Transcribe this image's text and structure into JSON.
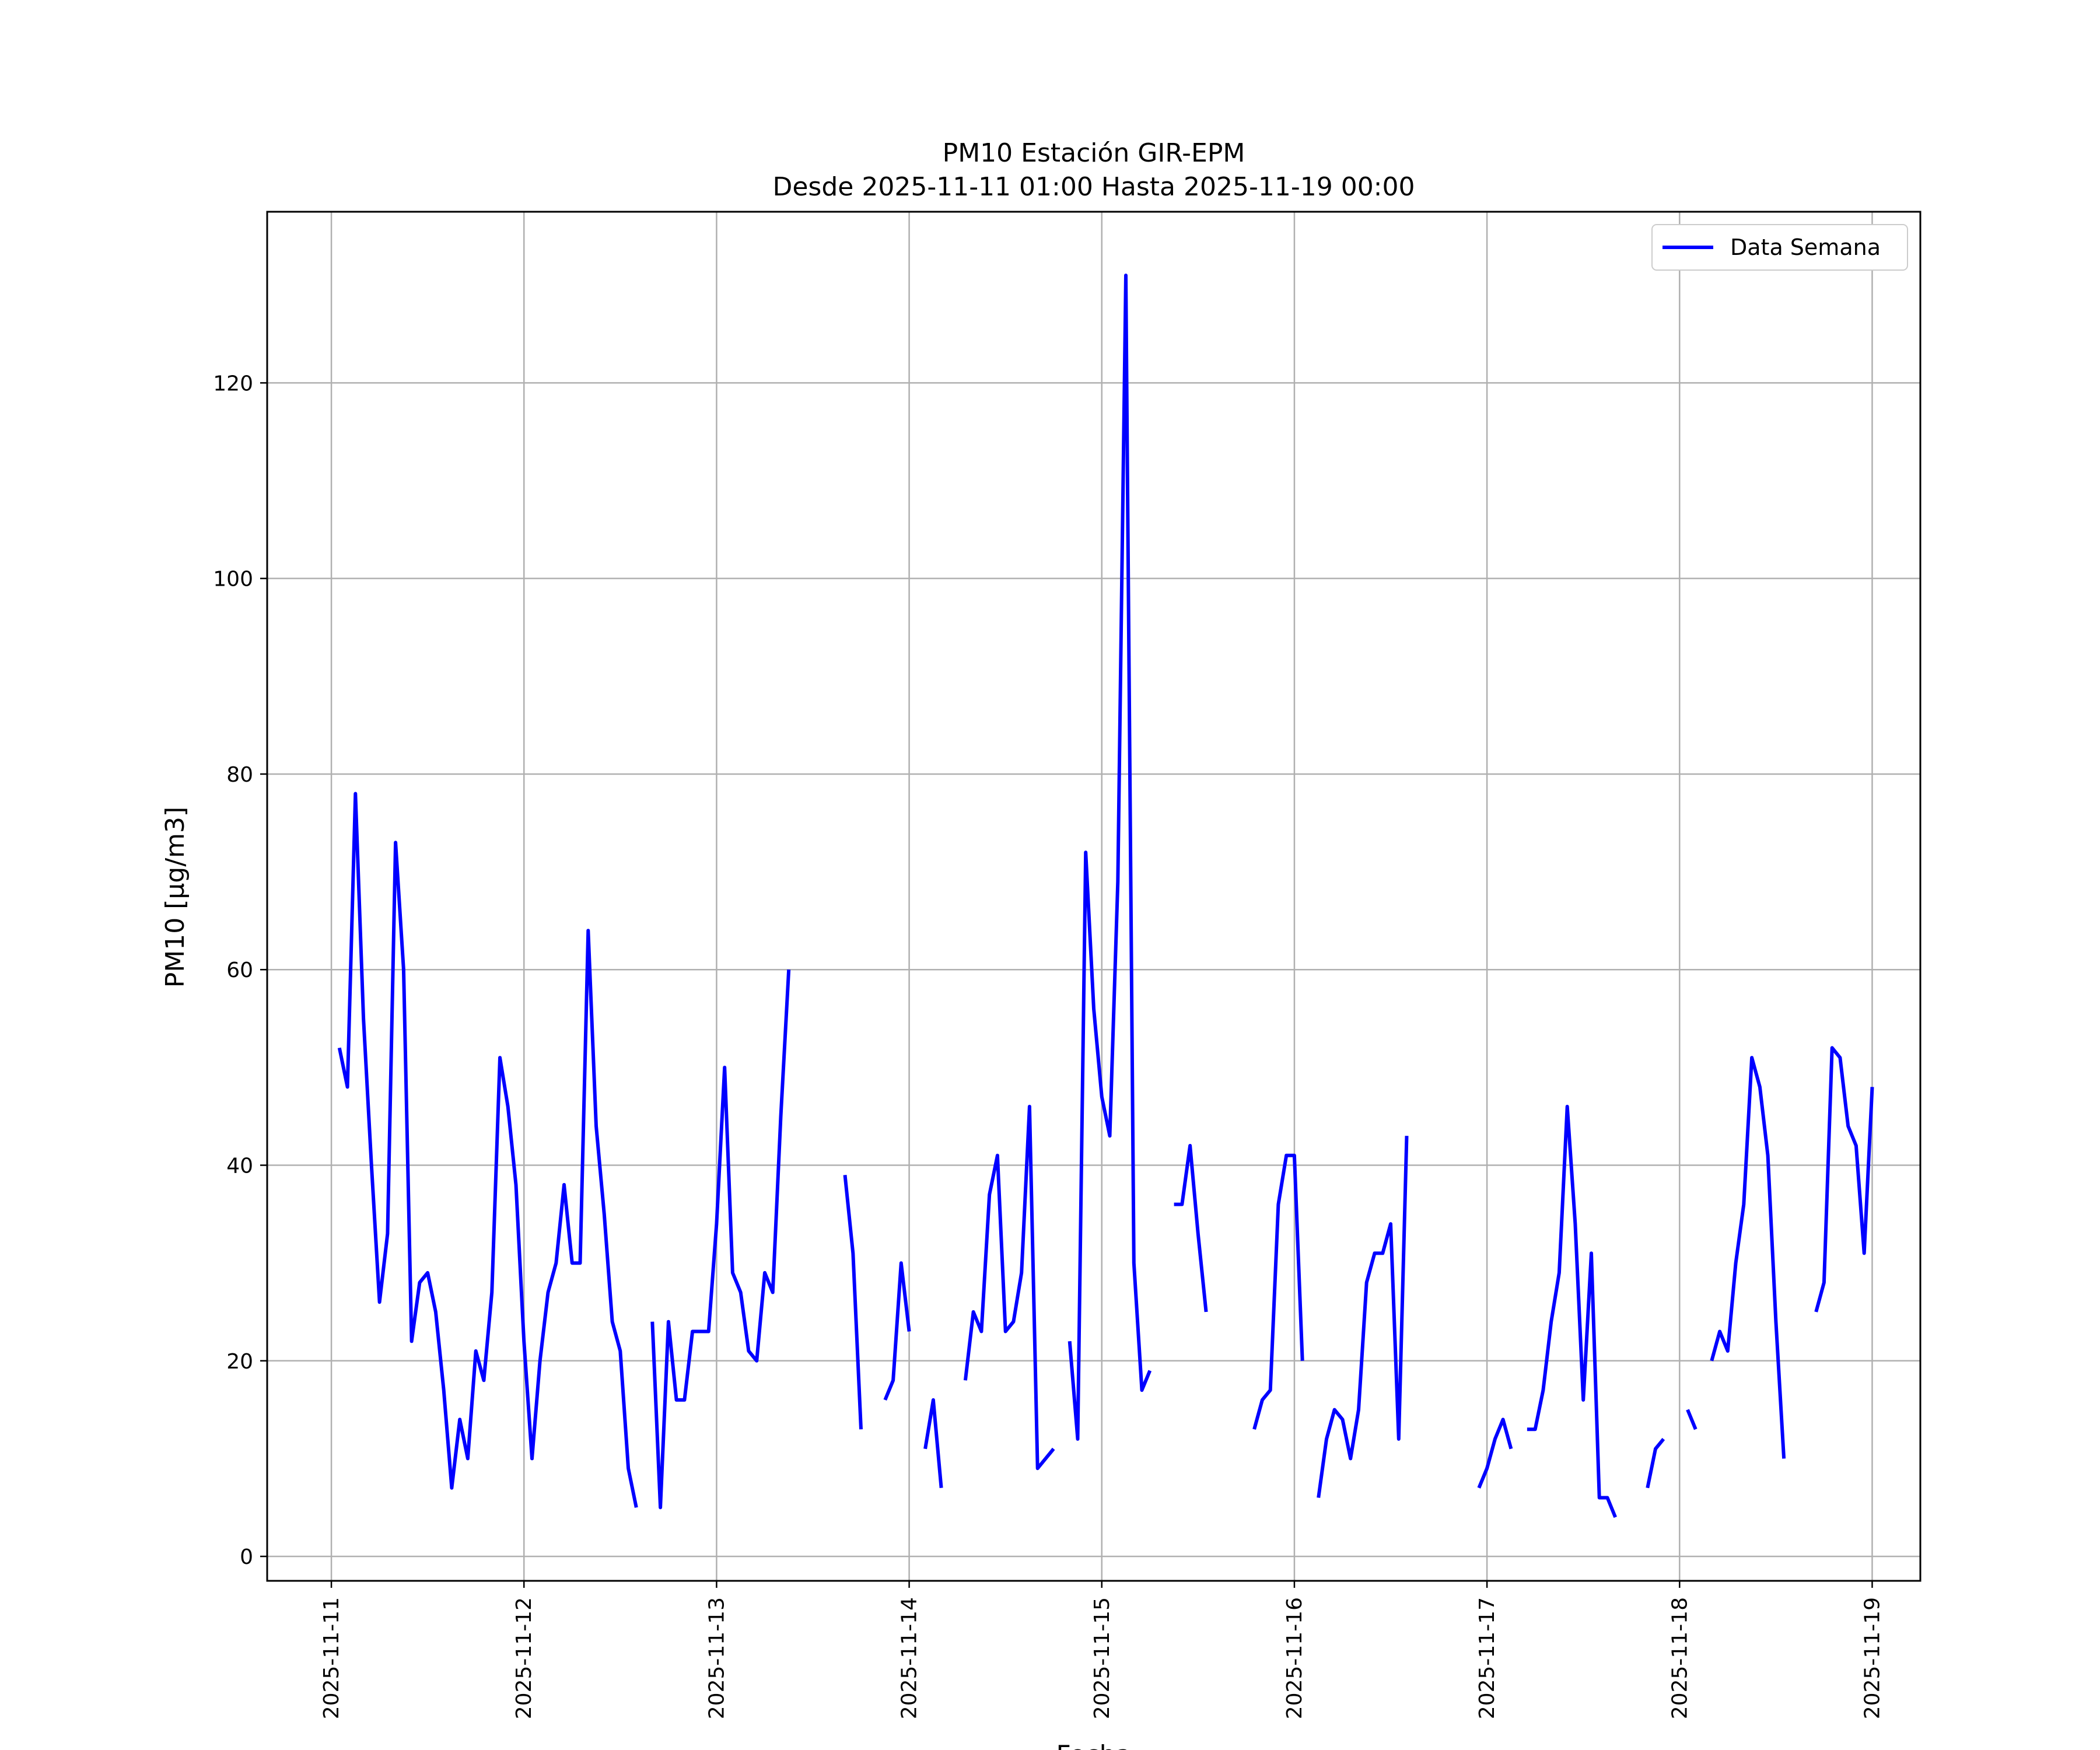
{
  "chart_data": {
    "type": "line",
    "title": "PM10 Estación GIR-EPM",
    "subtitle": "Desde 2025-11-11 01:00 Hasta 2025-11-19 00:00",
    "xlabel": "Fecha",
    "ylabel": "PM10 [μg/m3]",
    "xlim": [
      "2025-11-10 16:00",
      "2025-11-19 06:00"
    ],
    "ylim": [
      -2.5,
      137.5
    ],
    "grid": true,
    "legend_position": "top-right",
    "x_ticks": [
      "2025-11-11",
      "2025-11-12",
      "2025-11-13",
      "2025-11-14",
      "2025-11-15",
      "2025-11-16",
      "2025-11-17",
      "2025-11-18",
      "2025-11-19"
    ],
    "y_ticks": [
      "0",
      "20",
      "40",
      "60",
      "80",
      "100",
      "120"
    ],
    "series": [
      {
        "name": "Data Semana",
        "color": "#0000ff",
        "x": [
          "2025-11-11 01:00",
          "2025-11-11 02:00",
          "2025-11-11 03:00",
          "2025-11-11 04:00",
          "2025-11-11 05:00",
          "2025-11-11 06:00",
          "2025-11-11 07:00",
          "2025-11-11 08:00",
          "2025-11-11 09:00",
          "2025-11-11 10:00",
          "2025-11-11 11:00",
          "2025-11-11 12:00",
          "2025-11-11 13:00",
          "2025-11-11 14:00",
          "2025-11-11 15:00",
          "2025-11-11 16:00",
          "2025-11-11 17:00",
          "2025-11-11 18:00",
          "2025-11-11 19:00",
          "2025-11-11 20:00",
          "2025-11-11 21:00",
          "2025-11-11 22:00",
          "2025-11-11 23:00",
          "2025-11-12 00:00",
          "2025-11-12 01:00",
          "2025-11-12 02:00",
          "2025-11-12 03:00",
          "2025-11-12 04:00",
          "2025-11-12 05:00",
          "2025-11-12 06:00",
          "2025-11-12 07:00",
          "2025-11-12 08:00",
          "2025-11-12 09:00",
          "2025-11-12 10:00",
          "2025-11-12 11:00",
          "2025-11-12 12:00",
          "2025-11-12 13:00",
          "2025-11-12 14:00",
          "2025-11-12 15:00",
          "2025-11-12 16:00",
          "2025-11-12 17:00",
          "2025-11-12 18:00",
          "2025-11-12 19:00",
          "2025-11-12 20:00",
          "2025-11-12 21:00",
          "2025-11-12 22:00",
          "2025-11-12 23:00",
          "2025-11-13 00:00",
          "2025-11-13 01:00",
          "2025-11-13 02:00",
          "2025-11-13 03:00",
          "2025-11-13 04:00",
          "2025-11-13 05:00",
          "2025-11-13 06:00",
          "2025-11-13 07:00",
          "2025-11-13 08:00",
          "2025-11-13 09:00",
          "2025-11-13 10:00",
          "2025-11-13 11:00",
          "2025-11-13 12:00",
          "2025-11-13 13:00",
          "2025-11-13 14:00",
          "2025-11-13 15:00",
          "2025-11-13 16:00",
          "2025-11-13 17:00",
          "2025-11-13 18:00",
          "2025-11-13 19:00",
          "2025-11-13 20:00",
          "2025-11-13 21:00",
          "2025-11-13 22:00",
          "2025-11-13 23:00",
          "2025-11-14 00:00",
          "2025-11-14 01:00",
          "2025-11-14 02:00",
          "2025-11-14 03:00",
          "2025-11-14 04:00",
          "2025-11-14 05:00",
          "2025-11-14 06:00",
          "2025-11-14 07:00",
          "2025-11-14 08:00",
          "2025-11-14 09:00",
          "2025-11-14 10:00",
          "2025-11-14 11:00",
          "2025-11-14 12:00",
          "2025-11-14 13:00",
          "2025-11-14 14:00",
          "2025-11-14 15:00",
          "2025-11-14 16:00",
          "2025-11-14 17:00",
          "2025-11-14 18:00",
          "2025-11-14 19:00",
          "2025-11-14 20:00",
          "2025-11-14 21:00",
          "2025-11-14 22:00",
          "2025-11-14 23:00",
          "2025-11-15 00:00",
          "2025-11-15 01:00",
          "2025-11-15 02:00",
          "2025-11-15 03:00",
          "2025-11-15 04:00",
          "2025-11-15 05:00",
          "2025-11-15 06:00",
          "2025-11-15 07:00",
          "2025-11-15 08:00",
          "2025-11-15 09:00",
          "2025-11-15 10:00",
          "2025-11-15 11:00",
          "2025-11-15 12:00",
          "2025-11-15 13:00",
          "2025-11-15 14:00",
          "2025-11-15 15:00",
          "2025-11-15 16:00",
          "2025-11-15 17:00",
          "2025-11-15 18:00",
          "2025-11-15 19:00",
          "2025-11-15 20:00",
          "2025-11-15 21:00",
          "2025-11-15 22:00",
          "2025-11-15 23:00",
          "2025-11-16 00:00",
          "2025-11-16 01:00",
          "2025-11-16 02:00",
          "2025-11-16 03:00",
          "2025-11-16 04:00",
          "2025-11-16 05:00",
          "2025-11-16 06:00",
          "2025-11-16 07:00",
          "2025-11-16 08:00",
          "2025-11-16 09:00",
          "2025-11-16 10:00",
          "2025-11-16 11:00",
          "2025-11-16 12:00",
          "2025-11-16 13:00",
          "2025-11-16 14:00",
          "2025-11-16 15:00",
          "2025-11-16 16:00",
          "2025-11-16 17:00",
          "2025-11-16 18:00",
          "2025-11-16 19:00",
          "2025-11-16 20:00",
          "2025-11-16 21:00",
          "2025-11-16 22:00",
          "2025-11-16 23:00",
          "2025-11-17 00:00",
          "2025-11-17 01:00",
          "2025-11-17 02:00",
          "2025-11-17 03:00",
          "2025-11-17 04:00",
          "2025-11-17 05:00",
          "2025-11-17 06:00",
          "2025-11-17 07:00",
          "2025-11-17 08:00",
          "2025-11-17 09:00",
          "2025-11-17 10:00",
          "2025-11-17 11:00",
          "2025-11-17 12:00",
          "2025-11-17 13:00",
          "2025-11-17 14:00",
          "2025-11-17 15:00",
          "2025-11-17 16:00",
          "2025-11-17 17:00",
          "2025-11-17 18:00",
          "2025-11-17 19:00",
          "2025-11-17 20:00",
          "2025-11-17 21:00",
          "2025-11-17 22:00",
          "2025-11-17 23:00",
          "2025-11-18 00:00",
          "2025-11-18 01:00",
          "2025-11-18 02:00",
          "2025-11-18 03:00",
          "2025-11-18 04:00",
          "2025-11-18 05:00",
          "2025-11-18 06:00",
          "2025-11-18 07:00",
          "2025-11-18 08:00",
          "2025-11-18 09:00",
          "2025-11-18 10:00",
          "2025-11-18 11:00",
          "2025-11-18 12:00",
          "2025-11-18 13:00",
          "2025-11-18 14:00",
          "2025-11-18 15:00",
          "2025-11-18 16:00",
          "2025-11-18 17:00",
          "2025-11-18 18:00",
          "2025-11-18 19:00",
          "2025-11-18 20:00",
          "2025-11-18 21:00",
          "2025-11-18 22:00",
          "2025-11-18 23:00",
          "2025-11-19 00:00"
        ],
        "values": [
          52,
          48,
          78,
          55,
          40,
          26,
          33,
          73,
          60,
          22,
          28,
          29,
          25,
          17,
          7,
          14,
          10,
          21,
          18,
          27,
          51,
          46,
          38,
          22,
          10,
          20,
          27,
          30,
          38,
          30,
          30,
          64,
          44,
          35,
          24,
          21,
          9,
          5,
          null,
          24,
          5,
          24,
          16,
          16,
          23,
          23,
          23,
          34,
          50,
          29,
          27,
          21,
          20,
          29,
          27,
          45,
          60,
          null,
          null,
          null,
          null,
          null,
          null,
          39,
          31,
          13,
          null,
          null,
          16,
          18,
          30,
          23,
          null,
          11,
          16,
          7,
          null,
          null,
          18,
          25,
          23,
          37,
          41,
          23,
          24,
          29,
          46,
          9,
          10,
          11,
          null,
          22,
          12,
          72,
          56,
          47,
          43,
          69,
          131,
          30,
          17,
          19,
          null,
          null,
          36,
          36,
          42,
          33,
          25,
          null,
          null,
          null,
          null,
          null,
          13,
          16,
          17,
          36,
          41,
          41,
          20,
          null,
          6,
          12,
          15,
          14,
          10,
          15,
          28,
          31,
          31,
          34,
          12,
          43,
          null,
          null,
          null,
          null,
          null,
          null,
          null,
          null,
          7,
          9,
          12,
          14,
          11,
          null,
          13,
          13,
          17,
          24,
          29,
          46,
          34,
          16,
          31,
          6,
          6,
          4,
          null,
          null,
          null,
          7,
          11,
          12,
          null,
          null,
          15,
          13,
          null,
          20,
          23,
          21,
          30,
          36,
          51,
          48,
          41,
          24,
          10,
          null,
          null,
          null,
          25,
          28,
          52,
          51,
          44,
          42,
          31,
          48
        ]
      }
    ]
  }
}
